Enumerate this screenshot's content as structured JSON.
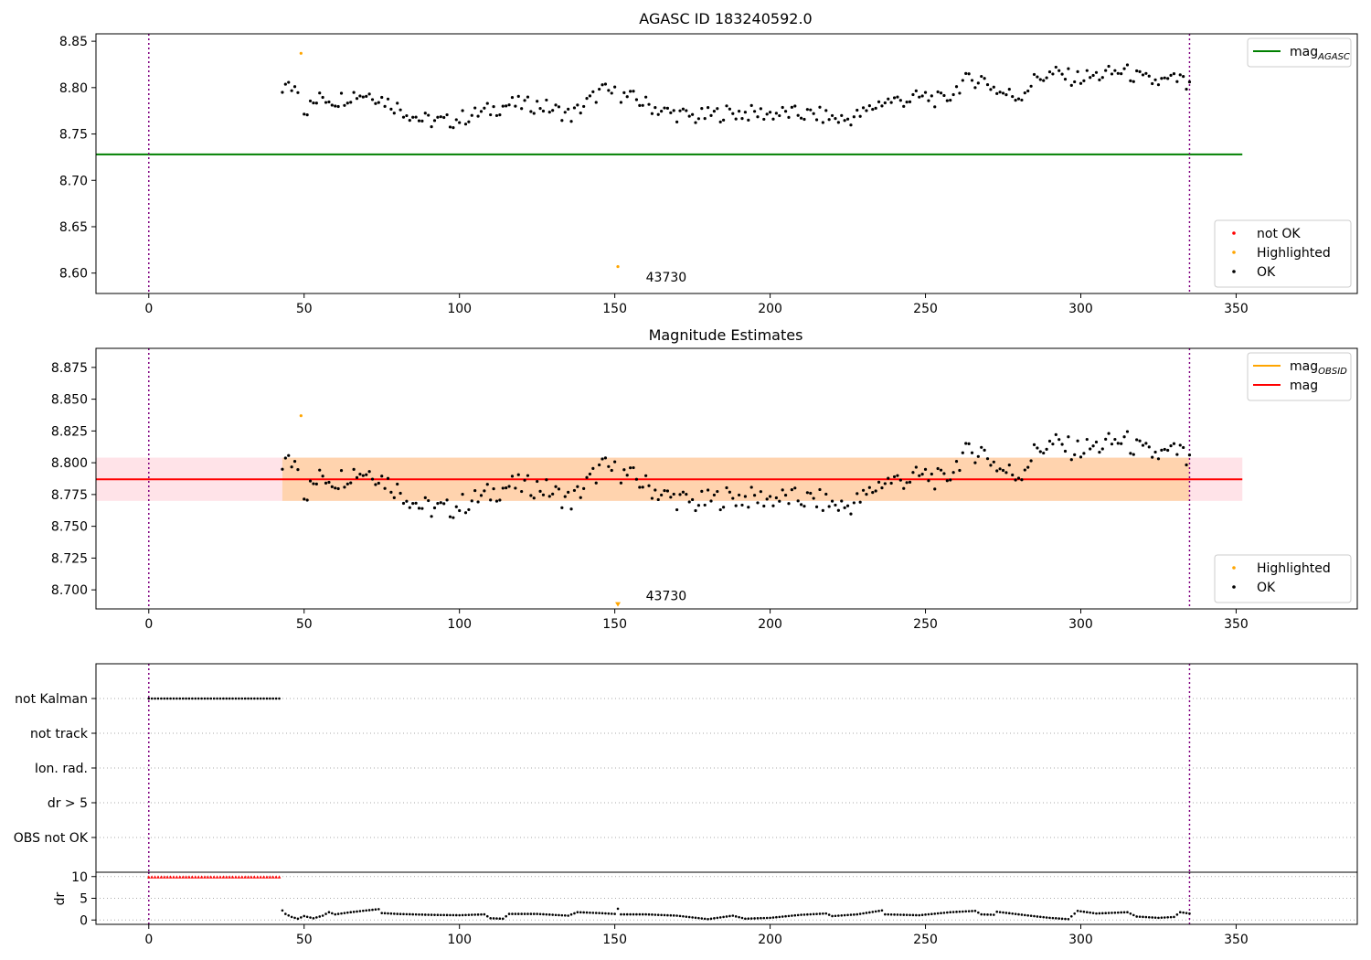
{
  "chart_data": [
    {
      "type": "scatter",
      "title": "AGASC ID 183240592.0",
      "xlim": [
        -17,
        389
      ],
      "ylim": [
        8.578,
        8.858
      ],
      "xticks": [
        0,
        50,
        100,
        150,
        200,
        250,
        300,
        350
      ],
      "yticks": [
        8.6,
        8.65,
        8.7,
        8.75,
        8.8,
        8.85
      ],
      "ytick_decimals": 2,
      "vlines": [
        0,
        335
      ],
      "hlines": [
        {
          "name": "mag_AGASC",
          "y": 8.728,
          "x": [
            -17,
            352
          ],
          "color": "#008000"
        }
      ],
      "series": [
        {
          "name": "not OK",
          "color": "#ff0000",
          "points": []
        },
        {
          "name": "Highlighted",
          "color": "#ffa500",
          "points": [
            [
              49,
              8.837
            ],
            [
              151,
              8.607
            ]
          ]
        },
        {
          "name": "OK",
          "color": "#000000",
          "points": []
        }
      ],
      "ok_profile": [
        [
          43,
          8.8
        ],
        [
          48,
          8.801
        ],
        [
          50,
          8.775
        ],
        [
          56,
          8.79
        ],
        [
          60,
          8.786
        ],
        [
          66,
          8.793
        ],
        [
          72,
          8.793
        ],
        [
          80,
          8.779
        ],
        [
          88,
          8.765
        ],
        [
          96,
          8.763
        ],
        [
          104,
          8.77
        ],
        [
          116,
          8.782
        ],
        [
          126,
          8.781
        ],
        [
          136,
          8.77
        ],
        [
          146,
          8.797
        ],
        [
          156,
          8.788
        ],
        [
          166,
          8.774
        ],
        [
          176,
          8.768
        ],
        [
          186,
          8.773
        ],
        [
          196,
          8.772
        ],
        [
          206,
          8.772
        ],
        [
          216,
          8.77
        ],
        [
          224,
          8.765
        ],
        [
          230,
          8.772
        ],
        [
          236,
          8.785
        ],
        [
          244,
          8.787
        ],
        [
          250,
          8.79
        ],
        [
          256,
          8.785
        ],
        [
          262,
          8.806
        ],
        [
          268,
          8.81
        ],
        [
          274,
          8.795
        ],
        [
          280,
          8.79
        ],
        [
          286,
          8.811
        ],
        [
          292,
          8.815
        ],
        [
          298,
          8.81
        ],
        [
          304,
          8.812
        ],
        [
          314,
          8.818
        ],
        [
          320,
          8.808
        ],
        [
          326,
          8.806
        ],
        [
          332,
          8.809
        ],
        [
          335,
          8.798
        ]
      ],
      "ok_range": [
        43,
        335
      ],
      "ok_jitter": 0.009,
      "legends": [
        {
          "loc": "upper right",
          "entries": [
            {
              "label": "mag",
              "sub": "AGASC",
              "kind": "line",
              "color": "#008000"
            }
          ]
        },
        {
          "loc": "lower right",
          "entries": [
            {
              "label": "not OK",
              "kind": "dot",
              "color": "#ff0000"
            },
            {
              "label": "Highlighted",
              "kind": "dot",
              "color": "#ffa500"
            },
            {
              "label": "OK",
              "kind": "dot",
              "color": "#000000"
            }
          ]
        }
      ],
      "annotations": [
        {
          "text": "43730",
          "x": 160,
          "y": 8.591
        }
      ]
    },
    {
      "type": "scatter",
      "title": "Magnitude Estimates",
      "xlim": [
        -17,
        389
      ],
      "ylim": [
        8.685,
        8.89
      ],
      "xticks": [
        0,
        50,
        100,
        150,
        200,
        250,
        300,
        350
      ],
      "yticks": [
        8.7,
        8.725,
        8.75,
        8.775,
        8.8,
        8.825,
        8.85,
        8.875
      ],
      "ytick_decimals": 3,
      "vlines": [
        0,
        335
      ],
      "bands": [
        {
          "name": "mag range",
          "y": [
            8.77,
            8.804
          ],
          "x": [
            -17,
            352
          ],
          "color": "#ffc0cb",
          "opacity": 0.45
        },
        {
          "name": "mag_OBSID range",
          "y": [
            8.77,
            8.804
          ],
          "x": [
            43,
            335
          ],
          "color": "#ffa500",
          "opacity": 0.25
        }
      ],
      "hlines": [
        {
          "name": "mag",
          "y": 8.787,
          "x": [
            -17,
            352
          ],
          "color": "#ff0000"
        }
      ],
      "series": [
        {
          "name": "Highlighted",
          "color": "#ffa500",
          "points": [
            [
              49,
              8.837
            ]
          ]
        },
        {
          "name": "OK",
          "color": "#000000",
          "points": []
        }
      ],
      "markers": [
        {
          "shape": "triangle-down",
          "x": 151,
          "y": 8.6885,
          "color": "#ffa500"
        }
      ],
      "ok_profile": [
        [
          43,
          8.8
        ],
        [
          48,
          8.801
        ],
        [
          50,
          8.775
        ],
        [
          56,
          8.79
        ],
        [
          60,
          8.786
        ],
        [
          66,
          8.793
        ],
        [
          72,
          8.793
        ],
        [
          80,
          8.779
        ],
        [
          88,
          8.765
        ],
        [
          96,
          8.763
        ],
        [
          104,
          8.77
        ],
        [
          116,
          8.782
        ],
        [
          126,
          8.781
        ],
        [
          136,
          8.77
        ],
        [
          146,
          8.797
        ],
        [
          156,
          8.788
        ],
        [
          166,
          8.774
        ],
        [
          176,
          8.768
        ],
        [
          186,
          8.773
        ],
        [
          196,
          8.772
        ],
        [
          206,
          8.772
        ],
        [
          216,
          8.77
        ],
        [
          224,
          8.765
        ],
        [
          230,
          8.772
        ],
        [
          236,
          8.785
        ],
        [
          244,
          8.787
        ],
        [
          250,
          8.79
        ],
        [
          256,
          8.785
        ],
        [
          262,
          8.806
        ],
        [
          268,
          8.81
        ],
        [
          274,
          8.795
        ],
        [
          280,
          8.79
        ],
        [
          286,
          8.811
        ],
        [
          292,
          8.815
        ],
        [
          298,
          8.81
        ],
        [
          304,
          8.812
        ],
        [
          314,
          8.818
        ],
        [
          320,
          8.808
        ],
        [
          326,
          8.806
        ],
        [
          332,
          8.809
        ],
        [
          335,
          8.798
        ]
      ],
      "ok_range": [
        43,
        335
      ],
      "ok_jitter": 0.009,
      "legends": [
        {
          "loc": "upper right",
          "entries": [
            {
              "label": "mag",
              "sub": "OBSID",
              "kind": "line",
              "color": "#ffa500"
            },
            {
              "label": "mag",
              "kind": "line",
              "color": "#ff0000"
            }
          ]
        },
        {
          "loc": "lower right",
          "entries": [
            {
              "label": "Highlighted",
              "kind": "dot",
              "color": "#ffa500"
            },
            {
              "label": "OK",
              "kind": "dot",
              "color": "#000000"
            }
          ]
        }
      ],
      "annotations": [
        {
          "text": "43730",
          "x": 160,
          "y": 8.692
        }
      ]
    },
    {
      "type": "scatter",
      "xlim": [
        -17,
        389
      ],
      "categories": [
        "not Kalman",
        "not track",
        "Ion. rad.",
        "dr > 5",
        "OBS not OK"
      ],
      "vlines": [
        0,
        335
      ],
      "flags": [
        {
          "category": "not Kalman",
          "x_range": [
            0,
            42
          ],
          "color": "#000000"
        }
      ]
    },
    {
      "type": "scatter",
      "xlim": [
        -17,
        389
      ],
      "ylim": [
        -1,
        11
      ],
      "ylabel": "dr",
      "yticks": [
        0,
        5,
        10
      ],
      "xticks": [
        0,
        50,
        100,
        150,
        200,
        250,
        300,
        350
      ],
      "vlines": [
        0,
        335
      ],
      "clipped": {
        "x_range": [
          0,
          42
        ],
        "y": 9.9,
        "color": "#ff0000",
        "marker": "triangle-up"
      },
      "dr_profile": [
        [
          43,
          2.2
        ],
        [
          44,
          1.4
        ],
        [
          46,
          0.7
        ],
        [
          48,
          0.3
        ],
        [
          50,
          0.9
        ],
        [
          53,
          0.4
        ],
        [
          56,
          1.0
        ],
        [
          58,
          1.8
        ],
        [
          60,
          1.3
        ],
        [
          65,
          1.8
        ],
        [
          70,
          2.2
        ],
        [
          74,
          2.5
        ],
        [
          75,
          1.6
        ],
        [
          80,
          1.4
        ],
        [
          90,
          1.2
        ],
        [
          100,
          1.1
        ],
        [
          108,
          1.3
        ],
        [
          110,
          0.4
        ],
        [
          114,
          0.3
        ],
        [
          116,
          1.4
        ],
        [
          125,
          1.4
        ],
        [
          135,
          1.0
        ],
        [
          138,
          1.8
        ],
        [
          145,
          1.6
        ],
        [
          150,
          1.4
        ],
        [
          151,
          2.6
        ],
        [
          152,
          1.3
        ],
        [
          160,
          1.3
        ],
        [
          170,
          1.0
        ],
        [
          175,
          0.6
        ],
        [
          180,
          0.2
        ],
        [
          188,
          1.0
        ],
        [
          192,
          0.3
        ],
        [
          200,
          0.5
        ],
        [
          210,
          1.2
        ],
        [
          218,
          1.5
        ],
        [
          220,
          0.9
        ],
        [
          228,
          1.3
        ],
        [
          236,
          2.2
        ],
        [
          237,
          1.3
        ],
        [
          248,
          1.1
        ],
        [
          258,
          1.8
        ],
        [
          266,
          2.1
        ],
        [
          268,
          1.3
        ],
        [
          272,
          1.2
        ],
        [
          273,
          1.9
        ],
        [
          280,
          1.3
        ],
        [
          286,
          0.8
        ],
        [
          290,
          0.5
        ],
        [
          296,
          0.2
        ],
        [
          299,
          2.1
        ],
        [
          305,
          1.5
        ],
        [
          315,
          1.8
        ],
        [
          318,
          0.8
        ],
        [
          325,
          0.5
        ],
        [
          330,
          0.7
        ],
        [
          332,
          1.8
        ],
        [
          335,
          1.5
        ]
      ],
      "dr_range": [
        43,
        335
      ]
    }
  ]
}
